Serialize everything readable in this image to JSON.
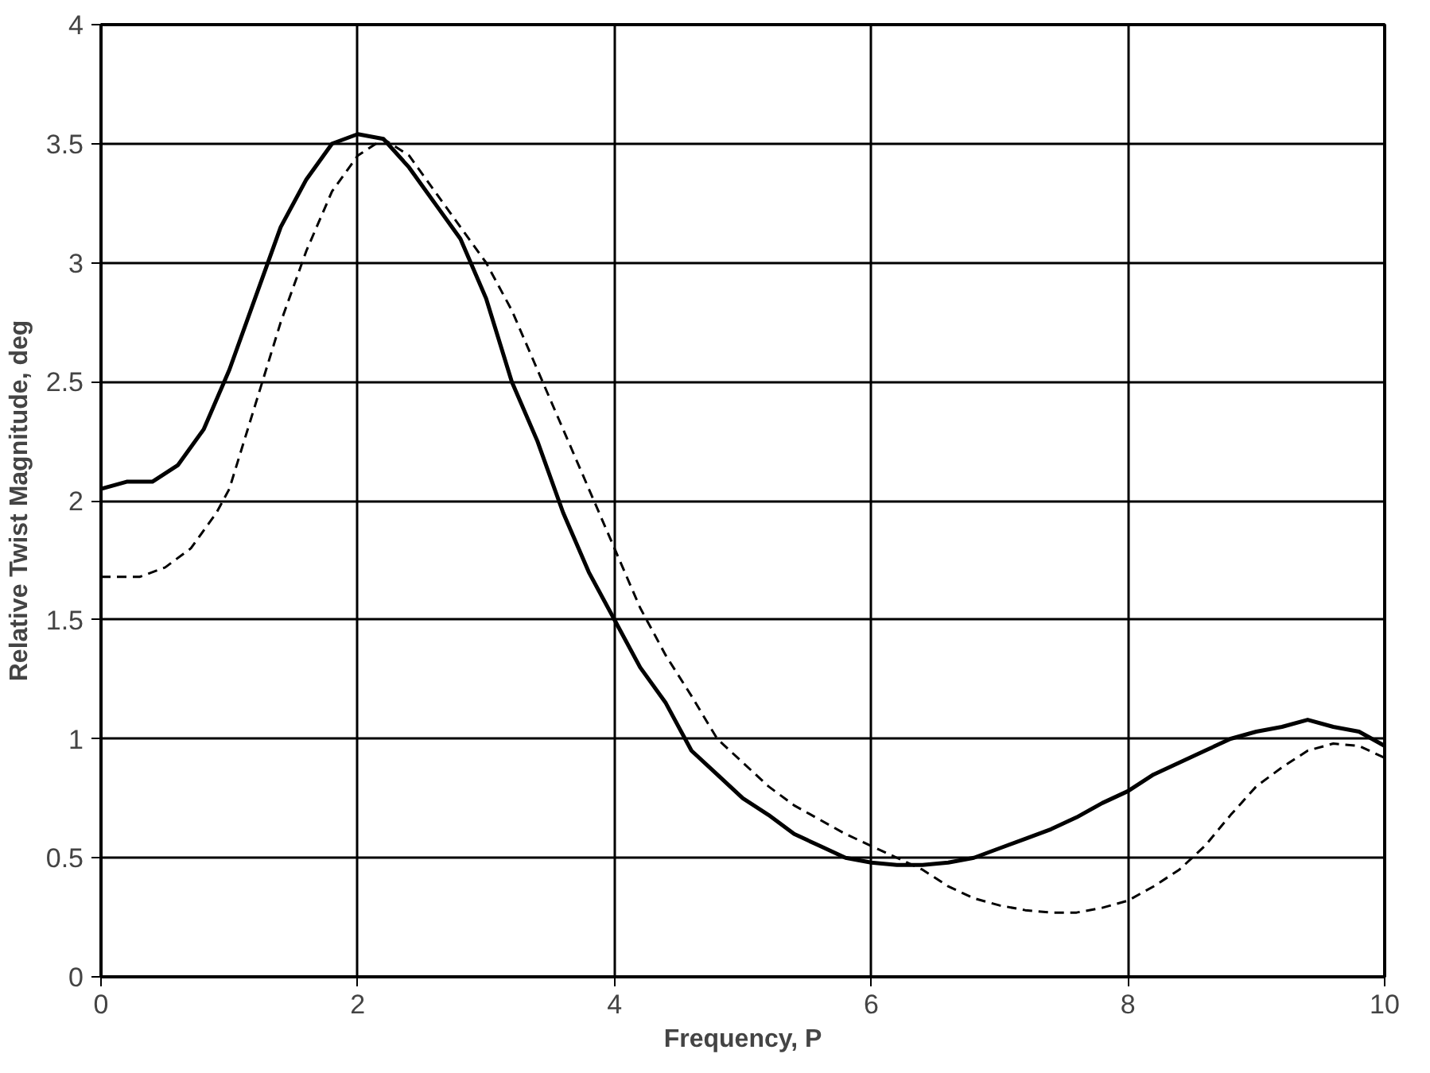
{
  "chart_data": {
    "type": "line",
    "xlabel": "Frequency, P",
    "ylabel": "Relative Twist Magnitude, deg",
    "xlim": [
      0,
      10
    ],
    "xticks": [
      0,
      2,
      4,
      6,
      8,
      10
    ],
    "ylim": [
      0,
      4
    ],
    "yticks": [
      0,
      0.5,
      1,
      1.5,
      2,
      2.5,
      3,
      3.5,
      4
    ],
    "grid": true,
    "series": [
      {
        "color": "#000000",
        "line_style": "solid",
        "x": [
          0,
          0.2,
          0.4,
          0.6,
          0.8,
          1.0,
          1.2,
          1.4,
          1.6,
          1.8,
          2.0,
          2.2,
          2.4,
          2.6,
          2.8,
          3.0,
          3.2,
          3.4,
          3.6,
          3.8,
          4.0,
          4.2,
          4.4,
          4.6,
          4.8,
          5.0,
          5.2,
          5.4,
          5.6,
          5.8,
          6.0,
          6.2,
          6.4,
          6.6,
          6.8,
          7.0,
          7.2,
          7.4,
          7.6,
          7.8,
          8.0,
          8.2,
          8.4,
          8.6,
          8.8,
          9.0,
          9.2,
          9.4,
          9.6,
          9.8,
          10
        ],
        "values": [
          2.05,
          2.08,
          2.08,
          2.15,
          2.3,
          2.55,
          2.85,
          3.15,
          3.35,
          3.5,
          3.54,
          3.52,
          3.4,
          3.25,
          3.1,
          2.85,
          2.5,
          2.25,
          1.95,
          1.7,
          1.5,
          1.3,
          1.15,
          0.95,
          0.85,
          0.75,
          0.68,
          0.6,
          0.55,
          0.5,
          0.48,
          0.47,
          0.47,
          0.48,
          0.5,
          0.54,
          0.58,
          0.62,
          0.67,
          0.73,
          0.78,
          0.85,
          0.9,
          0.95,
          1.0,
          1.03,
          1.05,
          1.08,
          1.05,
          1.03,
          0.97
        ]
      },
      {
        "color": "#000000",
        "line_style": "dashed",
        "x": [
          0,
          0.3,
          0.5,
          0.7,
          0.9,
          1.0,
          1.2,
          1.4,
          1.6,
          1.8,
          2.0,
          2.2,
          2.4,
          2.6,
          2.8,
          3.0,
          3.2,
          3.4,
          3.6,
          3.8,
          4.0,
          4.2,
          4.4,
          4.6,
          4.8,
          5.0,
          5.2,
          5.4,
          5.6,
          5.8,
          6.0,
          6.2,
          6.4,
          6.6,
          6.8,
          7.0,
          7.2,
          7.4,
          7.6,
          7.8,
          8.0,
          8.2,
          8.4,
          8.6,
          8.8,
          9.0,
          9.2,
          9.4,
          9.6,
          9.8,
          10
        ],
        "values": [
          1.68,
          1.68,
          1.72,
          1.8,
          1.95,
          2.05,
          2.4,
          2.75,
          3.05,
          3.3,
          3.45,
          3.52,
          3.45,
          3.3,
          3.15,
          3.0,
          2.8,
          2.55,
          2.3,
          2.05,
          1.8,
          1.55,
          1.35,
          1.18,
          1.0,
          0.9,
          0.8,
          0.72,
          0.66,
          0.6,
          0.55,
          0.5,
          0.45,
          0.38,
          0.33,
          0.3,
          0.28,
          0.27,
          0.27,
          0.29,
          0.32,
          0.38,
          0.45,
          0.55,
          0.68,
          0.8,
          0.88,
          0.95,
          0.98,
          0.97,
          0.92
        ]
      }
    ]
  }
}
